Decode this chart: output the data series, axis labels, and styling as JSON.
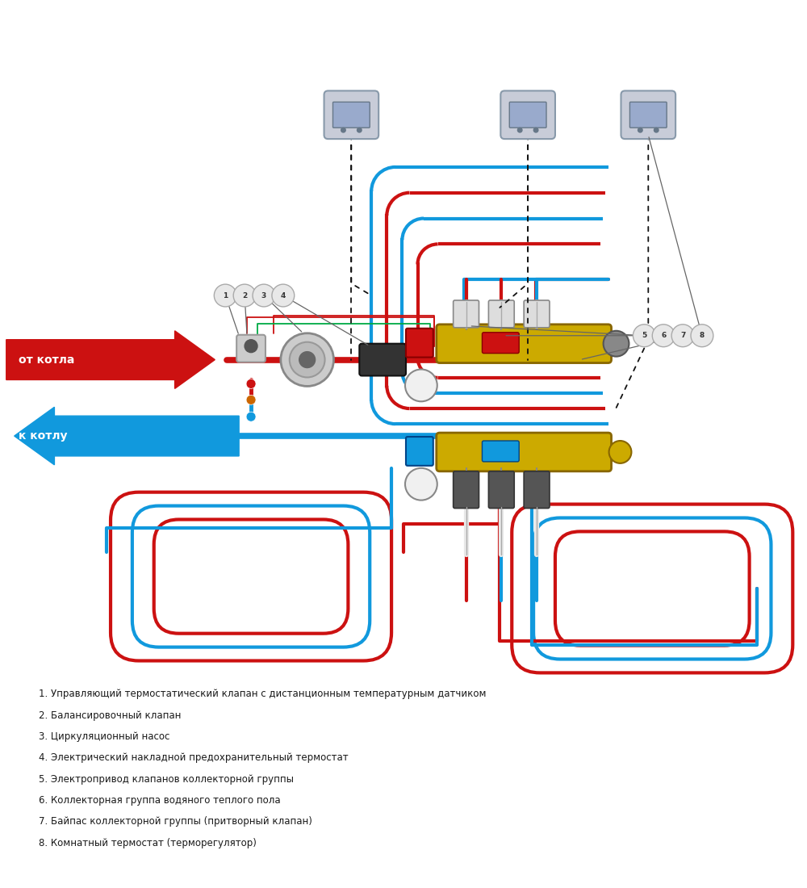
{
  "bg_color": "#ffffff",
  "red": "#cc1111",
  "blue": "#1199dd",
  "green": "#00aa44",
  "gold": "#ccaa00",
  "dark": "#222222",
  "gray": "#aaaaaa",
  "thermostat_bg": "#c8ccd8",
  "legend_items": [
    "1. Управляющий термостатический клапан с дистанционным температурным датчиком",
    "2. Балансировочный клапан",
    "3. Циркуляционный насос",
    "4. Электрический накладной предохранительный термостат",
    "5. Электропривод клапанов коллекторной группы",
    "6. Коллекторная группа водяного теплого пола",
    "7. Байпас коллекторной группы (притворный клапан)",
    "8. Комнатный термостат (терморегулятор)"
  ]
}
